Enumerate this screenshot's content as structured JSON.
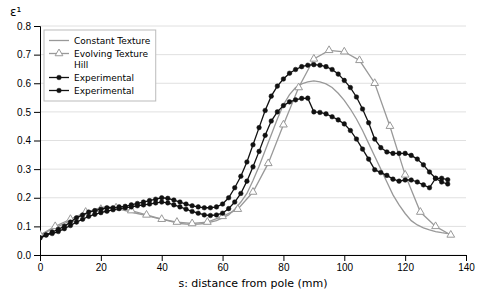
{
  "chart_data": {
    "type": "line",
    "xlabel": "s: distance from pole (mm)",
    "ylabel": "ε¹",
    "xlim": [
      0,
      140
    ],
    "ylim": [
      0,
      0.8
    ],
    "xticks": [
      0,
      20,
      40,
      60,
      80,
      100,
      120,
      140
    ],
    "yticks": [
      {
        "value": 0,
        "label": "0.0"
      },
      0.1,
      0.2,
      0.3,
      0.4,
      0.5,
      0.6,
      0.7,
      0.8
    ],
    "grid": true,
    "legend": "upper left",
    "series": [
      {
        "name": "Constant Texture",
        "color": "#999999",
        "line_style": "solid",
        "x": [
          0,
          2,
          4,
          6,
          8,
          10,
          12,
          14,
          16,
          18,
          20,
          22,
          24,
          26,
          28,
          30,
          32,
          34,
          36,
          38,
          40,
          42,
          44,
          46,
          48,
          50,
          52,
          54,
          56,
          58,
          60,
          62,
          64,
          66,
          68,
          70,
          72,
          74,
          76,
          78,
          80,
          82,
          84,
          86,
          88,
          90,
          92,
          94,
          96,
          98,
          100,
          102,
          104,
          106,
          108,
          110,
          112,
          114,
          116,
          118,
          120,
          122,
          124,
          126,
          128,
          130,
          132,
          134
        ],
        "values": [
          0.07,
          0.08,
          0.09,
          0.1,
          0.11,
          0.12,
          0.13,
          0.14,
          0.15,
          0.16,
          0.165,
          0.17,
          0.165,
          0.16,
          0.155,
          0.15,
          0.145,
          0.14,
          0.135,
          0.13,
          0.125,
          0.12,
          0.115,
          0.11,
          0.108,
          0.107,
          0.108,
          0.11,
          0.115,
          0.12,
          0.13,
          0.14,
          0.16,
          0.185,
          0.215,
          0.26,
          0.31,
          0.365,
          0.42,
          0.475,
          0.525,
          0.56,
          0.585,
          0.598,
          0.605,
          0.608,
          0.605,
          0.598,
          0.585,
          0.565,
          0.54,
          0.51,
          0.475,
          0.435,
          0.39,
          0.345,
          0.3,
          0.255,
          0.21,
          0.175,
          0.145,
          0.12,
          0.105,
          0.095,
          0.088,
          0.082,
          0.078,
          0.075
        ]
      },
      {
        "name": "Evolving Texture\nHill",
        "color": "#999999",
        "line_style": "solid",
        "marker": "triangle",
        "x": [
          0,
          5,
          10,
          15,
          20,
          25,
          30,
          35,
          40,
          45,
          50,
          55,
          60,
          65,
          70,
          75,
          80,
          85,
          90,
          95,
          100,
          105,
          110,
          115,
          120,
          125,
          130,
          135
        ],
        "values": [
          0.07,
          0.1,
          0.125,
          0.15,
          0.16,
          0.165,
          0.155,
          0.14,
          0.125,
          0.115,
          0.11,
          0.115,
          0.135,
          0.16,
          0.22,
          0.32,
          0.455,
          0.585,
          0.685,
          0.715,
          0.71,
          0.68,
          0.6,
          0.45,
          0.28,
          0.15,
          0.1,
          0.07
        ]
      },
      {
        "name": "Experimental",
        "color": "#111111",
        "line_style": "solid",
        "marker": "circle",
        "x": [
          0,
          2,
          4,
          6,
          8,
          10,
          12,
          14,
          16,
          18,
          20,
          22,
          24,
          26,
          28,
          30,
          32,
          34,
          36,
          38,
          40,
          42,
          44,
          46,
          48,
          50,
          52,
          54,
          56,
          58,
          60,
          62,
          64,
          66,
          68,
          70,
          72,
          74,
          76,
          78,
          80,
          82,
          84,
          86,
          88,
          90,
          92,
          94,
          96,
          98,
          100,
          102,
          104,
          106,
          108,
          110,
          112,
          114,
          116,
          118,
          120,
          122,
          124,
          126,
          128,
          130,
          132,
          134
        ],
        "values": [
          0.06,
          0.07,
          0.08,
          0.09,
          0.1,
          0.115,
          0.13,
          0.14,
          0.15,
          0.155,
          0.16,
          0.165,
          0.165,
          0.168,
          0.17,
          0.175,
          0.18,
          0.185,
          0.19,
          0.195,
          0.2,
          0.198,
          0.192,
          0.185,
          0.178,
          0.172,
          0.168,
          0.165,
          0.165,
          0.168,
          0.178,
          0.2,
          0.235,
          0.275,
          0.325,
          0.385,
          0.445,
          0.505,
          0.555,
          0.59,
          0.615,
          0.635,
          0.648,
          0.658,
          0.663,
          0.665,
          0.663,
          0.658,
          0.648,
          0.632,
          0.61,
          0.585,
          0.552,
          0.51,
          0.462,
          0.405,
          0.375,
          0.36,
          0.355,
          0.355,
          0.355,
          0.348,
          0.335,
          0.315,
          0.29,
          0.268,
          0.255,
          0.248
        ]
      },
      {
        "name": "Experimental",
        "color": "#111111",
        "line_style": "solid",
        "marker": "circle",
        "x": [
          0,
          2,
          4,
          6,
          8,
          10,
          12,
          14,
          16,
          18,
          20,
          22,
          24,
          26,
          28,
          30,
          32,
          34,
          36,
          38,
          40,
          42,
          44,
          46,
          48,
          50,
          52,
          54,
          56,
          58,
          60,
          62,
          64,
          66,
          68,
          70,
          72,
          74,
          76,
          78,
          80,
          82,
          84,
          86,
          88,
          90,
          92,
          94,
          96,
          98,
          100,
          102,
          104,
          106,
          108,
          110,
          112,
          114,
          116,
          118,
          120,
          122,
          124,
          126,
          128,
          130,
          132,
          134
        ],
        "values": [
          0.06,
          0.07,
          0.075,
          0.082,
          0.092,
          0.103,
          0.115,
          0.125,
          0.135,
          0.142,
          0.148,
          0.153,
          0.158,
          0.162,
          0.165,
          0.168,
          0.172,
          0.175,
          0.178,
          0.182,
          0.185,
          0.182,
          0.175,
          0.168,
          0.16,
          0.152,
          0.146,
          0.14,
          0.138,
          0.14,
          0.146,
          0.162,
          0.185,
          0.215,
          0.258,
          0.308,
          0.362,
          0.418,
          0.468,
          0.5,
          0.522,
          0.535,
          0.542,
          0.547,
          0.548,
          0.5,
          0.498,
          0.493,
          0.483,
          0.472,
          0.458,
          0.435,
          0.405,
          0.37,
          0.335,
          0.298,
          0.288,
          0.278,
          0.265,
          0.258,
          0.262,
          0.262,
          0.255,
          0.245,
          0.235,
          0.268,
          0.268,
          0.263
        ]
      }
    ]
  }
}
